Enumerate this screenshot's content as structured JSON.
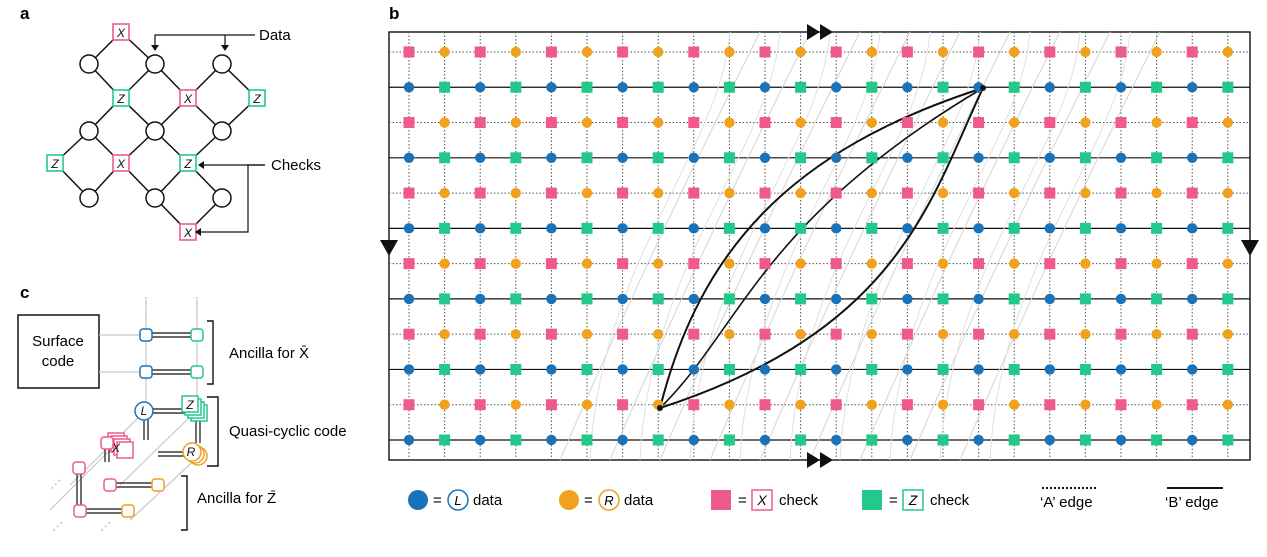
{
  "panels": {
    "a": {
      "letter": "a",
      "data_label": "Data",
      "checks_label": "Checks",
      "x_glyph": "X",
      "z_glyph": "Z"
    },
    "b": {
      "letter": "b",
      "legend": {
        "l_data_glyph": "L",
        "l_data_text": "data",
        "r_data_glyph": "R",
        "r_data_text": "data",
        "x_check_glyph": "X",
        "x_check_text": "check",
        "z_check_glyph": "Z",
        "z_check_text": "check",
        "a_edge_text": "‘A’ edge",
        "b_edge_text": "‘B’ edge",
        "equals": "="
      }
    },
    "c": {
      "letter": "c",
      "surface_code_line1": "Surface",
      "surface_code_line2": "code",
      "ancilla_x": "Ancilla for X̄",
      "quasi_cyclic": "Quasi-cyclic code",
      "ancilla_z": "Ancilla for Z̄",
      "l_glyph": "L",
      "r_glyph": "R",
      "x_glyph": "X",
      "z_glyph": "Z"
    }
  },
  "colors": {
    "l_data": "#1a73b8",
    "r_data": "#f0a11e",
    "x_check": "#ee5a8f",
    "z_check": "#22c98a",
    "edge": "#111111",
    "faint": "#c8c8c8"
  }
}
